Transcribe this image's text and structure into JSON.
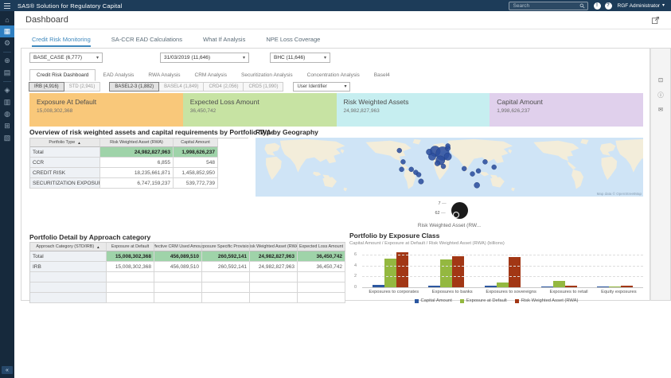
{
  "topbar": {
    "title": "SAS® Solution for Regulatory Capital",
    "search_placeholder": "Search",
    "user_menu": "RGF Administrator"
  },
  "header": {
    "title": "Dashboard"
  },
  "main_tabs": [
    {
      "label": "Credit Risk Monitoring",
      "active": true
    },
    {
      "label": "SA-CCR EAD Calculations",
      "active": false
    },
    {
      "label": "What If Analysis",
      "active": false
    },
    {
      "label": "NPE Loss Coverage",
      "active": false
    }
  ],
  "sidebar": {
    "items": [
      {
        "name": "home-icon",
        "glyph": "⌂"
      },
      {
        "name": "dashboard-icon",
        "glyph": "▦",
        "active": true
      },
      {
        "name": "settings-icon",
        "glyph": "⚙"
      },
      {
        "divider": true
      },
      {
        "name": "globe-icon",
        "glyph": "⊕"
      },
      {
        "name": "reports-icon",
        "glyph": "▤"
      },
      {
        "divider": true
      },
      {
        "name": "scenario-icon",
        "glyph": "◈"
      },
      {
        "name": "documents-icon",
        "glyph": "▥"
      },
      {
        "name": "finance-icon",
        "glyph": "◍"
      },
      {
        "name": "bank-icon",
        "glyph": "⊞"
      },
      {
        "name": "hierarchy-icon",
        "glyph": "▧"
      }
    ],
    "collapse_glyph": "«"
  },
  "filters": [
    {
      "value": "BASE_CASE (6,777)"
    },
    {
      "value": "31/03/2019 (11,646)"
    },
    {
      "value": "BHC (11,646)"
    }
  ],
  "report_tabs": [
    {
      "label": "Credit Risk Dashboard",
      "active": true
    },
    {
      "label": "EAD Analysis",
      "active": false
    },
    {
      "label": "RWA Analysis",
      "active": false
    },
    {
      "label": "CRM Analysis",
      "active": false
    },
    {
      "label": "Securitization Analysis",
      "active": false
    },
    {
      "label": "Concentration Analysis",
      "active": false
    },
    {
      "label": "Basel4",
      "active": false
    }
  ],
  "toggle_groups": [
    {
      "buttons": [
        {
          "label": "IRB (4,916)",
          "selected": true
        },
        {
          "label": "STD (2,941)",
          "selected": false
        }
      ]
    },
    {
      "buttons": [
        {
          "label": "BASEL2-3 (1,882)",
          "selected": true
        },
        {
          "label": "BASEL4 (1,849)",
          "selected": false
        },
        {
          "label": "CRD4 (2,056)",
          "selected": false
        },
        {
          "label": "CRD5 (1,990)",
          "selected": false
        }
      ]
    }
  ],
  "user_identifier": {
    "value": "User Identifier"
  },
  "kpis": [
    {
      "label": "Exposure At Default",
      "value": "15,008,302,368",
      "bg": "#f9c87a"
    },
    {
      "label": "Expected Loss Amount",
      "value": "36,450,742",
      "bg": "#c7e3a3"
    },
    {
      "label": "Risk Weighted Assets",
      "value": "24,982,827,963",
      "bg": "#c6eef0"
    },
    {
      "label": "Capital Amount",
      "value": "1,998,626,237",
      "bg": "#e0d0ec"
    }
  ],
  "overview_table": {
    "title": "Overview of risk weighted assets and capital requirements by Portfolio Type",
    "columns": [
      "Portfolio Type",
      "Risk Weighted Asset (RWA)",
      "Capital Amount"
    ],
    "rows": [
      {
        "label": "Total",
        "cells": [
          "24,982,827,963",
          "1,998,626,237"
        ],
        "total": true
      },
      {
        "label": "CCR",
        "cells": [
          "6,855",
          "548"
        ],
        "total": false
      },
      {
        "label": "CREDIT RISK",
        "cells": [
          "18,235,661,871",
          "1,458,852,950"
        ],
        "total": false
      },
      {
        "label": "SECURITIZATION EXPOSURES",
        "cells": [
          "6,747,159,237",
          "539,772,739"
        ],
        "total": false
      }
    ]
  },
  "map": {
    "title": "RWA by Geography",
    "attribution": "Map data © OpenStreetMap",
    "legend": {
      "max_label": "7",
      "min_label": "62",
      "caption": "Risk Weighted Asset (RW..."
    },
    "bubble_color": "#2c4f9e",
    "bubbles": [
      [
        241,
        18,
        7
      ],
      [
        251,
        21,
        9
      ],
      [
        237,
        25,
        5
      ],
      [
        248,
        30,
        6
      ],
      [
        258,
        25,
        5
      ],
      [
        233,
        19,
        4
      ],
      [
        244,
        34,
        3.5
      ],
      [
        258,
        14,
        3.5
      ],
      [
        193,
        17,
        3.2
      ],
      [
        198,
        32,
        3.2
      ],
      [
        196,
        42,
        3.2
      ],
      [
        209,
        42,
        3.2
      ],
      [
        215,
        46,
        3.2
      ],
      [
        219,
        49,
        3.2
      ],
      [
        222,
        58,
        3.5
      ],
      [
        258,
        11,
        3.2
      ],
      [
        252,
        38,
        3.2
      ],
      [
        280,
        41,
        3.2
      ],
      [
        308,
        32,
        3.2
      ],
      [
        299,
        44,
        3.2
      ],
      [
        291,
        48,
        3.2
      ],
      [
        297,
        63,
        3.8
      ],
      [
        320,
        39,
        3.2
      ]
    ]
  },
  "detail_table": {
    "title": "Portfolio Detail by Approach category",
    "columns": [
      "Approach Category (STD/IRB)",
      "Exposure at Default",
      "Effective CRM Used Amount",
      "Exposure Specific Provisions",
      "Risk Weighted Asset (RWA)",
      "Expected Loss Amount"
    ],
    "rows": [
      {
        "label": "Total",
        "cells": [
          "15,008,302,368",
          "456,089,510",
          "260,592,141",
          "24,982,827,963",
          "36,450,742"
        ],
        "total": true
      },
      {
        "label": "IRB",
        "cells": [
          "15,008,302,368",
          "456,089,510",
          "260,592,141",
          "24,982,827,963",
          "36,450,742"
        ],
        "total": false
      }
    ]
  },
  "chart_data": {
    "type": "bar",
    "title": "Portfolio by Exposure Class",
    "subtitle": "Capital Amount / Exposure at Default / Risk Weighted Asset (RWA) (billions)",
    "categories": [
      "Exposures to corporates",
      "Exposures to banks",
      "Exposures to sovereigns",
      "Exposures to retail",
      "Equity exposures"
    ],
    "series": [
      {
        "name": "Capital Amount",
        "color": "#2c57a0",
        "values": [
          0.45,
          0.35,
          0.3,
          0.06,
          0.02
        ]
      },
      {
        "name": "Exposure at Default",
        "color": "#94b840",
        "values": [
          5.2,
          5.15,
          0.85,
          1.2,
          0.05
        ]
      },
      {
        "name": "Risk Weighted Asset (RWA)",
        "color": "#a23715",
        "values": [
          6.4,
          5.7,
          5.5,
          0.32,
          0.28
        ]
      }
    ],
    "yticks": [
      0,
      2,
      4,
      6
    ],
    "ylim": [
      0,
      7
    ],
    "legend_position": "bottom",
    "grid": "dashed"
  },
  "rail": {
    "icons": [
      {
        "name": "maximize-icon",
        "glyph": "⊡"
      },
      {
        "name": "info-icon",
        "glyph": "ⓘ"
      },
      {
        "name": "comments-icon",
        "glyph": "✉"
      }
    ]
  },
  "topbar_icons": [
    {
      "name": "alerts-icon",
      "glyph": "!"
    },
    {
      "name": "help-icon",
      "glyph": "?"
    }
  ]
}
